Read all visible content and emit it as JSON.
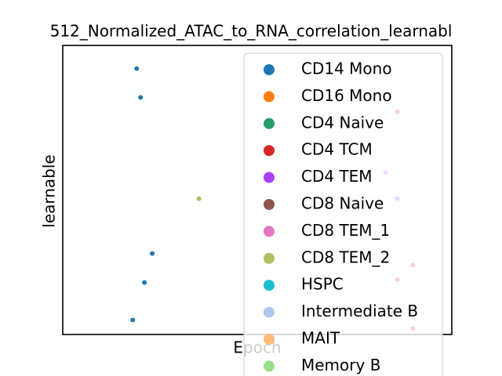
{
  "chart_data": {
    "type": "scatter",
    "title": "512_Normalized_ATAC_to_RNA_correlation_learnabl",
    "x_label": "Epoch",
    "y_label": "learnable",
    "xlim": [
      0,
      1
    ],
    "ylim": [
      0,
      1
    ],
    "series": [
      {
        "name": "CD14 Mono",
        "color": "#1f77b4",
        "x": [
          0.19,
          0.2,
          0.23,
          0.21,
          0.18
        ],
        "y": [
          0.92,
          0.82,
          0.28,
          0.18,
          0.05
        ]
      },
      {
        "name": "CD16 Mono",
        "color": "#ff7f0e",
        "x": [],
        "y": []
      },
      {
        "name": "CD4 Naive",
        "color": "#279e68",
        "x": [],
        "y": []
      },
      {
        "name": "CD4 TCM",
        "color": "#d62728",
        "x": [
          0.86,
          0.9,
          0.86,
          0.9
        ],
        "y": [
          0.77,
          0.24,
          0.19,
          0.02
        ]
      },
      {
        "name": "CD4 TEM",
        "color": "#aa40fc",
        "x": [
          0.83,
          0.86
        ],
        "y": [
          0.56,
          0.47
        ]
      },
      {
        "name": "CD8 Naive",
        "color": "#8c564b",
        "x": [],
        "y": []
      },
      {
        "name": "CD8 TEM_1",
        "color": "#e377c2",
        "x": [],
        "y": []
      },
      {
        "name": "CD8 TEM_2",
        "color": "#b5bd61",
        "x": [
          0.35
        ],
        "y": [
          0.47
        ]
      },
      {
        "name": "HSPC",
        "color": "#17becf",
        "x": [],
        "y": []
      },
      {
        "name": "Intermediate B",
        "color": "#aec7e8",
        "x": [],
        "y": []
      },
      {
        "name": "MAIT",
        "color": "#ffbb78",
        "x": [],
        "y": []
      },
      {
        "name": "Memory B",
        "color": "#98df8a",
        "x": [],
        "y": []
      }
    ]
  }
}
